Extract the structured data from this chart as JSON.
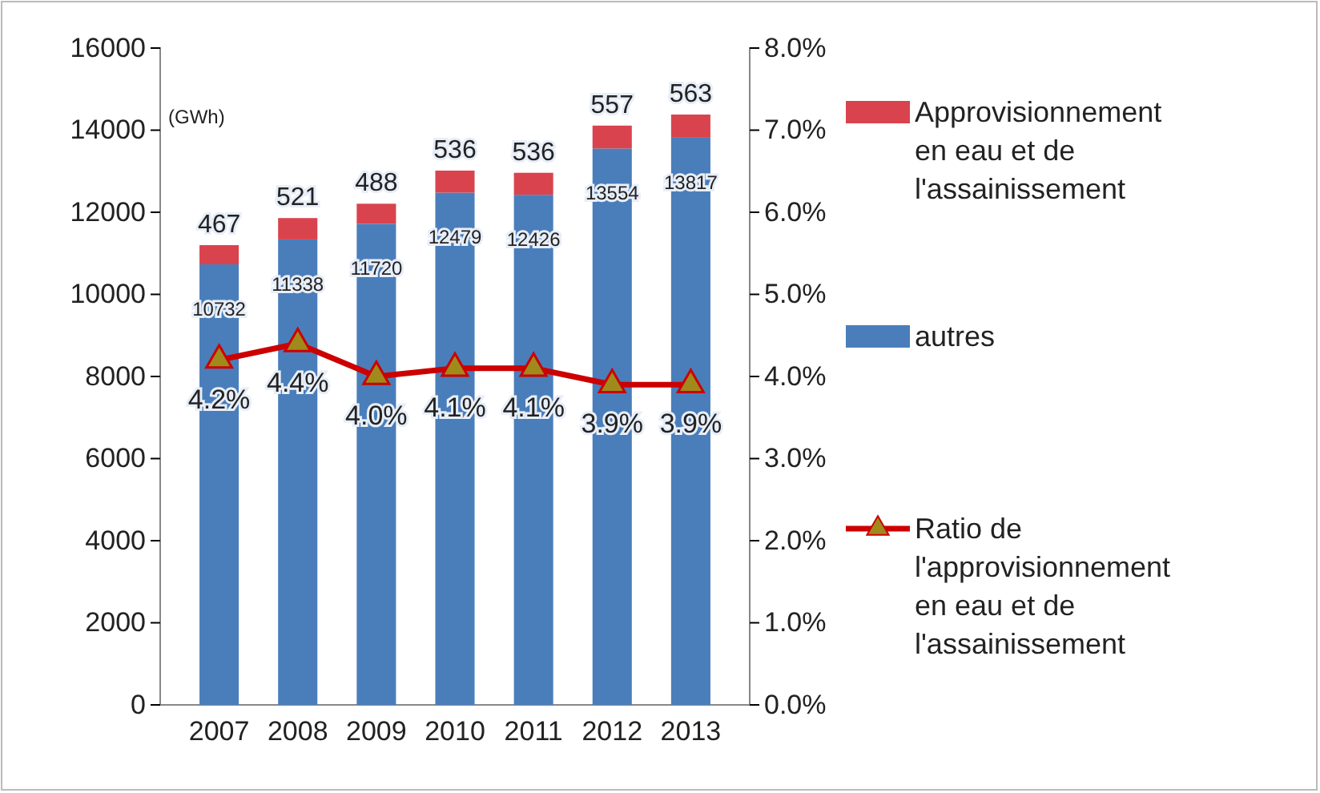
{
  "chart_data": {
    "type": "bar",
    "stacked": true,
    "categories": [
      "2007",
      "2008",
      "2009",
      "2010",
      "2011",
      "2012",
      "2013"
    ],
    "series": [
      {
        "name": "autres",
        "color": "#4a7ebb",
        "values": [
          10732,
          11338,
          11720,
          12479,
          12426,
          13554,
          13817
        ],
        "value_labels": [
          "10732",
          "11338",
          "11720",
          "12479",
          "12426",
          "13554",
          "13817"
        ]
      },
      {
        "name": "Approvisionnement en eau et de l'assainissement",
        "color": "#d9434e",
        "values": [
          467,
          521,
          488,
          536,
          536,
          557,
          563
        ],
        "value_labels": [
          "467",
          "521",
          "488",
          "536",
          "536",
          "557",
          "563"
        ]
      },
      {
        "name": "Ratio de l'approvisionnement en eau et de l'assainissement",
        "type": "line",
        "axis": "y2",
        "color": "#cc0000",
        "marker": "triangle",
        "values": [
          4.2,
          4.4,
          4.0,
          4.1,
          4.1,
          3.9,
          3.9
        ],
        "value_labels": [
          "4.2%",
          "4.4%",
          "4.0%",
          "4.1%",
          "4.1%",
          "3.9%",
          "3.9%"
        ]
      }
    ],
    "ylim": [
      0,
      16000
    ],
    "yticks": [
      0,
      2000,
      4000,
      6000,
      8000,
      10000,
      12000,
      14000,
      16000
    ],
    "y2lim": [
      0,
      8
    ],
    "y2ticks": [
      {
        "value": 0,
        "label": "0.0%"
      },
      {
        "value": 1,
        "label": "1.0%"
      },
      {
        "value": 2,
        "label": "2.0%"
      },
      {
        "value": 3,
        "label": "3.0%"
      },
      {
        "value": 4,
        "label": "4.0%"
      },
      {
        "value": 5,
        "label": "5.0%"
      },
      {
        "value": 6,
        "label": "6.0%"
      },
      {
        "value": 7,
        "label": "7.0%"
      },
      {
        "value": 8,
        "label": "8.0%"
      }
    ],
    "annotations": [
      "(GWh)"
    ],
    "legend": "right"
  }
}
